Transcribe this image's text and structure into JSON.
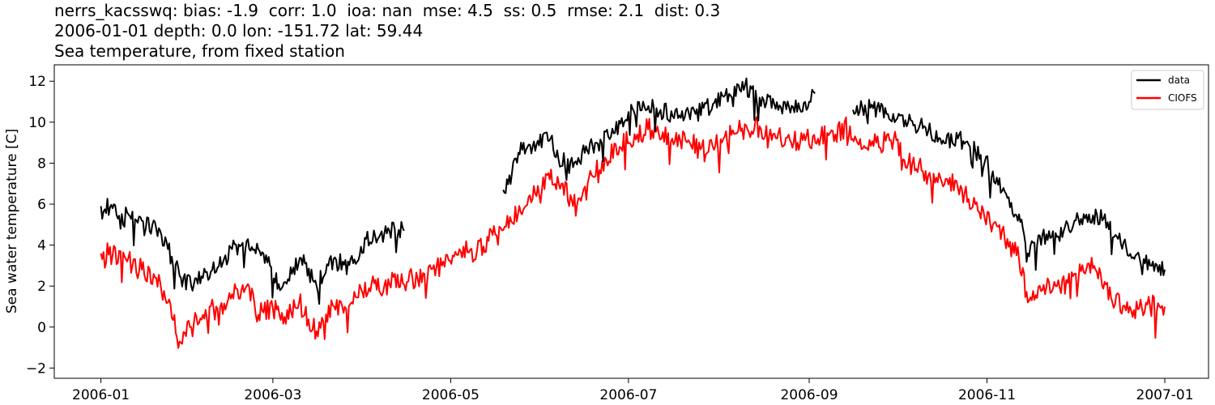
{
  "title": {
    "line1": "nerrs_kacsswq: bias: -1.9  corr: 1.0  ioa: nan  mse: 4.5  ss: 0.5  rmse: 2.1  dist: 0.3",
    "line2": "2006-01-01 depth: 0.0 lon: -151.72 lat: 59.44",
    "line3": "Sea temperature, from fixed station"
  },
  "chart_data": {
    "type": "line",
    "ylabel": "Sea water temperature [C]",
    "xlabel": "",
    "xlim": [
      "2005-12-16",
      "2007-01-16"
    ],
    "ylim": [
      -2.5,
      12.8
    ],
    "x_ticks": [
      "2006-01",
      "2006-03",
      "2006-05",
      "2006-07",
      "2006-09",
      "2006-11",
      "2007-01"
    ],
    "y_ticks": [
      -2,
      0,
      2,
      4,
      6,
      8,
      10,
      12
    ],
    "legend_position": "top-right",
    "grid": false,
    "series": [
      {
        "name": "data",
        "color": "#000000",
        "segments": [
          [
            [
              "2006-01-01",
              5.9
            ],
            [
              "2006-01-05",
              5.8
            ],
            [
              "2006-01-10",
              5.6
            ],
            [
              "2006-01-15",
              5.2
            ],
            [
              "2006-01-20",
              4.8
            ],
            [
              "2006-01-24",
              3.8
            ],
            [
              "2006-01-28",
              2.5
            ],
            [
              "2006-02-01",
              2.0
            ],
            [
              "2006-02-05",
              2.4
            ],
            [
              "2006-02-10",
              2.9
            ],
            [
              "2006-02-15",
              3.8
            ],
            [
              "2006-02-20",
              4.2
            ],
            [
              "2006-02-24",
              3.8
            ],
            [
              "2006-02-28",
              3.0
            ],
            [
              "2006-03-03",
              2.1
            ],
            [
              "2006-03-08",
              2.9
            ],
            [
              "2006-03-12",
              3.1
            ],
            [
              "2006-03-16",
              2.0
            ],
            [
              "2006-03-20",
              3.0
            ],
            [
              "2006-03-25",
              3.2
            ],
            [
              "2006-03-29",
              3.3
            ],
            [
              "2006-04-02",
              4.3
            ],
            [
              "2006-04-06",
              4.3
            ],
            [
              "2006-04-10",
              4.7
            ],
            [
              "2006-04-15",
              4.7
            ]
          ],
          [
            [
              "2006-05-19",
              6.7
            ],
            [
              "2006-05-22",
              7.5
            ],
            [
              "2006-05-26",
              9.0
            ],
            [
              "2006-05-30",
              8.6
            ],
            [
              "2006-06-03",
              9.5
            ],
            [
              "2006-06-07",
              8.2
            ],
            [
              "2006-06-12",
              7.8
            ],
            [
              "2006-06-16",
              8.5
            ],
            [
              "2006-06-20",
              9.0
            ],
            [
              "2006-06-25",
              9.3
            ],
            [
              "2006-07-01",
              10.5
            ],
            [
              "2006-07-06",
              11.0
            ],
            [
              "2006-07-12",
              10.6
            ],
            [
              "2006-07-18",
              10.2
            ],
            [
              "2006-07-24",
              10.4
            ],
            [
              "2006-07-30",
              10.9
            ],
            [
              "2006-08-05",
              11.3
            ],
            [
              "2006-08-10",
              11.8
            ],
            [
              "2006-08-15",
              11.2
            ],
            [
              "2006-08-20",
              10.9
            ],
            [
              "2006-08-26",
              10.8
            ],
            [
              "2006-09-01",
              11.0
            ],
            [
              "2006-09-03",
              11.4
            ]
          ],
          [
            [
              "2006-09-16",
              10.6
            ],
            [
              "2006-09-22",
              10.7
            ],
            [
              "2006-09-28",
              10.4
            ],
            [
              "2006-10-04",
              10.1
            ],
            [
              "2006-10-10",
              9.7
            ],
            [
              "2006-10-16",
              9.2
            ],
            [
              "2006-10-22",
              9.2
            ],
            [
              "2006-10-28",
              8.6
            ],
            [
              "2006-11-03",
              7.6
            ],
            [
              "2006-11-08",
              6.3
            ],
            [
              "2006-11-12",
              5.5
            ],
            [
              "2006-11-15",
              3.6
            ],
            [
              "2006-11-20",
              4.5
            ],
            [
              "2006-11-25",
              4.4
            ],
            [
              "2006-12-01",
              5.2
            ],
            [
              "2006-12-06",
              5.5
            ],
            [
              "2006-12-11",
              5.3
            ],
            [
              "2006-12-16",
              4.3
            ],
            [
              "2006-12-22",
              3.5
            ],
            [
              "2006-12-27",
              3.0
            ],
            [
              "2007-01-01",
              2.8
            ]
          ]
        ]
      },
      {
        "name": "CIOFS",
        "color": "#ff0000",
        "segments": [
          [
            [
              "2006-01-01",
              3.6
            ],
            [
              "2006-01-05",
              3.5
            ],
            [
              "2006-01-10",
              3.2
            ],
            [
              "2006-01-15",
              2.8
            ],
            [
              "2006-01-20",
              2.4
            ],
            [
              "2006-01-24",
              1.2
            ],
            [
              "2006-01-28",
              -0.7
            ],
            [
              "2006-02-01",
              0.0
            ],
            [
              "2006-02-05",
              0.6
            ],
            [
              "2006-02-10",
              0.9
            ],
            [
              "2006-02-15",
              1.6
            ],
            [
              "2006-02-20",
              2.0
            ],
            [
              "2006-02-24",
              0.6
            ],
            [
              "2006-03-01",
              0.9
            ],
            [
              "2006-03-05",
              0.5
            ],
            [
              "2006-03-10",
              1.2
            ],
            [
              "2006-03-16",
              -0.2
            ],
            [
              "2006-03-22",
              1.0
            ],
            [
              "2006-03-28",
              1.2
            ],
            [
              "2006-04-03",
              1.9
            ],
            [
              "2006-04-10",
              2.1
            ],
            [
              "2006-04-16",
              2.2
            ],
            [
              "2006-04-22",
              2.6
            ],
            [
              "2006-04-28",
              3.0
            ],
            [
              "2006-05-04",
              3.8
            ],
            [
              "2006-05-10",
              3.7
            ],
            [
              "2006-05-14",
              4.2
            ],
            [
              "2006-05-20",
              4.9
            ],
            [
              "2006-05-25",
              5.6
            ],
            [
              "2006-05-30",
              6.5
            ],
            [
              "2006-06-04",
              7.2
            ],
            [
              "2006-06-08",
              7.0
            ],
            [
              "2006-06-12",
              5.9
            ],
            [
              "2006-06-17",
              7.0
            ],
            [
              "2006-06-22",
              8.1
            ],
            [
              "2006-06-28",
              8.8
            ],
            [
              "2006-07-04",
              9.4
            ],
            [
              "2006-07-10",
              9.8
            ],
            [
              "2006-07-16",
              9.2
            ],
            [
              "2006-07-22",
              9.0
            ],
            [
              "2006-07-28",
              8.5
            ],
            [
              "2006-08-03",
              9.3
            ],
            [
              "2006-08-09",
              9.7
            ],
            [
              "2006-08-15",
              9.8
            ],
            [
              "2006-08-21",
              9.2
            ],
            [
              "2006-08-28",
              9.0
            ],
            [
              "2006-09-04",
              9.2
            ],
            [
              "2006-09-10",
              9.4
            ],
            [
              "2006-09-15",
              9.8
            ],
            [
              "2006-09-18",
              8.9
            ],
            [
              "2006-09-24",
              9.0
            ],
            [
              "2006-09-30",
              9.2
            ],
            [
              "2006-10-05",
              8.0
            ],
            [
              "2006-10-10",
              7.6
            ],
            [
              "2006-10-16",
              7.3
            ],
            [
              "2006-10-22",
              6.8
            ],
            [
              "2006-10-28",
              6.0
            ],
            [
              "2006-11-03",
              5.0
            ],
            [
              "2006-11-08",
              4.3
            ],
            [
              "2006-11-12",
              3.3
            ],
            [
              "2006-11-15",
              1.2
            ],
            [
              "2006-11-20",
              1.8
            ],
            [
              "2006-11-25",
              2.0
            ],
            [
              "2006-12-01",
              2.6
            ],
            [
              "2006-12-06",
              3.1
            ],
            [
              "2006-12-10",
              2.6
            ],
            [
              "2006-12-14",
              1.2
            ],
            [
              "2006-12-20",
              1.0
            ],
            [
              "2006-12-26",
              1.1
            ],
            [
              "2007-01-01",
              1.0
            ]
          ]
        ]
      }
    ]
  }
}
